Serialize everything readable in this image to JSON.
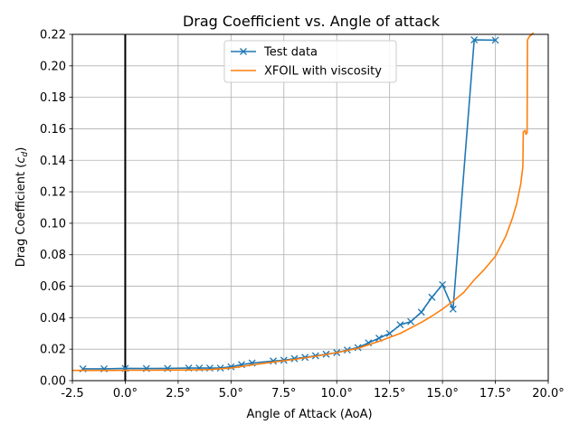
{
  "chart_data": {
    "type": "line",
    "title": "Drag Coefficient vs. Angle of attack",
    "xlabel": "Angle of Attack (AoA)",
    "ylabel_prefix": "Drag Coefficient (",
    "ylabel_symbol": "c",
    "ylabel_subscript": "d",
    "ylabel_suffix": ")",
    "xlim": [
      -2.5,
      20.0
    ],
    "ylim": [
      0.0,
      0.22
    ],
    "x_ticks": [
      "-2.5",
      "0.0°",
      "2.5°",
      "5.0°",
      "7.5°",
      "10.0°",
      "12.5°",
      "15.0°",
      "17.5°",
      "20.0°"
    ],
    "x_tick_values": [
      -2.5,
      0,
      2.5,
      5,
      7.5,
      10,
      12.5,
      15,
      17.5,
      20
    ],
    "y_ticks": [
      "0.00",
      "0.02",
      "0.04",
      "0.06",
      "0.08",
      "0.10",
      "0.12",
      "0.14",
      "0.16",
      "0.18",
      "0.20",
      "0.22"
    ],
    "y_tick_values": [
      0,
      0.02,
      0.04,
      0.06,
      0.08,
      0.1,
      0.12,
      0.14,
      0.16,
      0.18,
      0.2,
      0.22
    ],
    "grid": true,
    "zero_line_x": 0,
    "legend_position": "upper-center",
    "series": [
      {
        "name": "Test data",
        "color": "#1f77b4",
        "marker": "x",
        "x": [
          -2,
          -1,
          0,
          1,
          2,
          3,
          3.5,
          4,
          4.5,
          5,
          5.5,
          6,
          7,
          7.5,
          8,
          8.5,
          9,
          9.5,
          10,
          10.5,
          11,
          11.5,
          12,
          12.5,
          13,
          13.5,
          14,
          14.5,
          15,
          15.5,
          16.5,
          17.5
        ],
        "y": [
          0.0075,
          0.0075,
          0.0078,
          0.0077,
          0.0078,
          0.008,
          0.008,
          0.008,
          0.008,
          0.0088,
          0.0102,
          0.0112,
          0.0125,
          0.013,
          0.014,
          0.0148,
          0.0158,
          0.0168,
          0.0178,
          0.0195,
          0.021,
          0.024,
          0.027,
          0.03,
          0.0355,
          0.0375,
          0.0435,
          0.053,
          0.061,
          0.0455,
          0.2165,
          0.2163
        ]
      },
      {
        "name": "XFOIL with viscosity",
        "color": "#ff7f0e",
        "marker": "none",
        "x": [
          -2.5,
          -1.5,
          -0.5,
          0.0,
          1.0,
          2.0,
          3.0,
          4.0,
          5.0,
          6.0,
          7.0,
          8.0,
          9.0,
          10.0,
          11.0,
          12.0,
          13.0,
          14.0,
          14.5,
          15.0,
          15.5,
          16.0,
          16.5,
          17.0,
          17.5,
          18.0,
          18.3,
          18.5,
          18.7,
          18.8,
          18.82,
          18.9,
          18.95,
          19.0,
          19.02,
          19.1,
          19.3
        ],
        "y": [
          0.0065,
          0.0065,
          0.0065,
          0.0066,
          0.0066,
          0.0067,
          0.0068,
          0.0071,
          0.008,
          0.01,
          0.0118,
          0.0135,
          0.0155,
          0.0178,
          0.0205,
          0.025,
          0.03,
          0.037,
          0.041,
          0.0455,
          0.0505,
          0.056,
          0.064,
          0.071,
          0.079,
          0.092,
          0.103,
          0.112,
          0.125,
          0.136,
          0.158,
          0.159,
          0.1565,
          0.1575,
          0.2165,
          0.2185,
          0.221
        ]
      }
    ]
  }
}
